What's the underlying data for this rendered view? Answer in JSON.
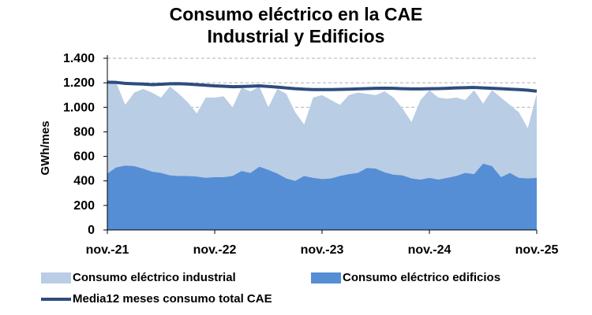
{
  "chart_data": {
    "type": "area",
    "title": [
      "Consumo eléctrico en la CAE",
      "Industrial y Edificios"
    ],
    "ylabel": "GWh/mes",
    "xlabel": "",
    "ylim": [
      0,
      1400
    ],
    "yticks": [
      0,
      200,
      400,
      600,
      800,
      1000,
      1200,
      1400
    ],
    "ytick_labels": [
      "0",
      "200",
      "400",
      "600",
      "800",
      "1.000",
      "1.200",
      "1.400"
    ],
    "xtick_labels": [
      "nov.-21",
      "nov.-22",
      "nov.-23",
      "nov.-24",
      "nov.-25"
    ],
    "x_months": 49,
    "grid": "horizontal dashed",
    "legend_position": "bottom",
    "colors": {
      "industrial": "#b9cde5",
      "edificios": "#558ed5",
      "media": "#2e4d7e",
      "grid": "#b0b0b0"
    },
    "series": [
      {
        "name": "Consumo eléctrico edificios",
        "role": "stacked-area-bottom",
        "values": [
          460,
          510,
          525,
          520,
          500,
          475,
          465,
          445,
          440,
          440,
          435,
          425,
          430,
          430,
          440,
          480,
          465,
          515,
          490,
          460,
          420,
          400,
          440,
          425,
          415,
          420,
          440,
          455,
          465,
          505,
          500,
          470,
          450,
          445,
          420,
          410,
          425,
          410,
          425,
          440,
          465,
          455,
          540,
          520,
          430,
          465,
          425,
          420,
          425
        ]
      },
      {
        "name": "Consumo eléctrico industrial",
        "role": "stacked-area-top",
        "values": [
          1190,
          1200,
          1020,
          1120,
          1150,
          1120,
          1080,
          1170,
          1110,
          1040,
          950,
          1080,
          1080,
          1090,
          1000,
          1160,
          1130,
          1170,
          1000,
          1150,
          1110,
          960,
          860,
          1080,
          1100,
          1060,
          1020,
          1100,
          1120,
          1110,
          1100,
          1130,
          1080,
          990,
          880,
          1060,
          1140,
          1080,
          1070,
          1080,
          1060,
          1140,
          1030,
          1140,
          1080,
          1020,
          960,
          830,
          1110
        ]
      },
      {
        "name": "Media12 meses consumo total CAE",
        "role": "line",
        "values": [
          1205,
          1203,
          1195,
          1192,
          1190,
          1185,
          1188,
          1192,
          1193,
          1190,
          1185,
          1180,
          1175,
          1172,
          1168,
          1170,
          1172,
          1175,
          1170,
          1165,
          1158,
          1152,
          1148,
          1145,
          1145,
          1145,
          1146,
          1148,
          1150,
          1153,
          1155,
          1156,
          1155,
          1152,
          1150,
          1150,
          1152,
          1153,
          1155,
          1158,
          1160,
          1162,
          1158,
          1155,
          1152,
          1148,
          1145,
          1140,
          1132
        ]
      }
    ]
  },
  "legend": {
    "industrial": "Consumo eléctrico industrial",
    "edificios": "Consumo eléctrico edificios",
    "media": "Media12 meses consumo total CAE"
  }
}
